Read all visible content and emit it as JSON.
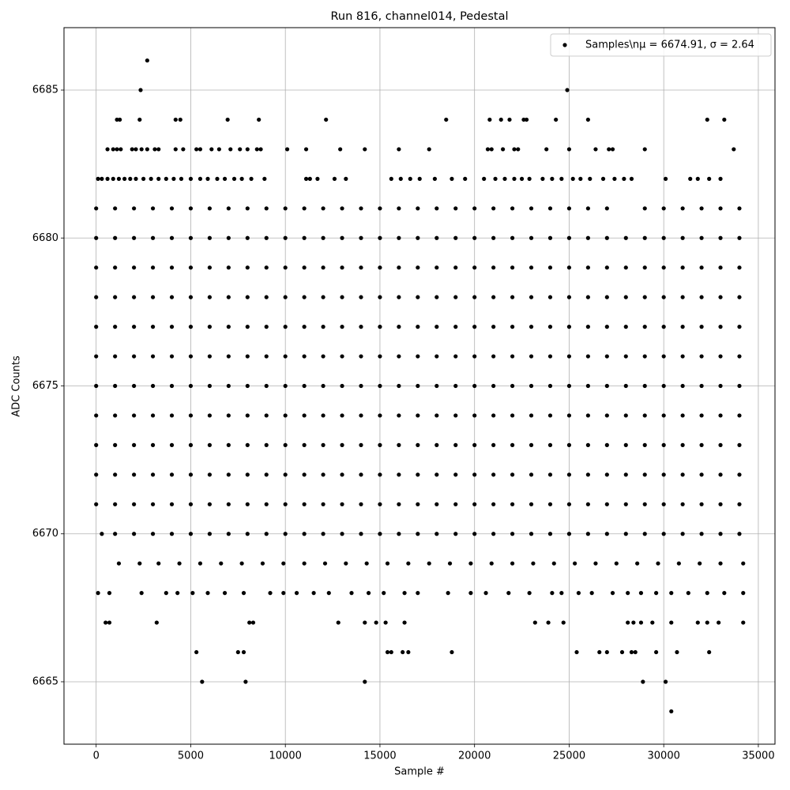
{
  "chart_data": {
    "type": "scatter",
    "title": "Run 816, channel014, Pedestal",
    "x_label": "Sample #",
    "y_label": "ADC Counts",
    "xlim": [
      -1700,
      35880
    ],
    "ylim": [
      6662.89,
      6687.11
    ],
    "xticks": [
      0,
      5000,
      10000,
      15000,
      20000,
      25000,
      30000,
      35000
    ],
    "yticks": [
      6665,
      6670,
      6675,
      6680,
      6685
    ],
    "grid": true,
    "legend_position": "upper-right",
    "series": [
      {
        "name": "Samples\\nμ = 6674.91, σ = 2.64",
        "color": "#000000"
      }
    ],
    "x": [
      2700,
      2350,
      24900,
      1100,
      1250,
      2300,
      4200,
      4450,
      6950,
      8600,
      12150,
      18500,
      20800,
      21400,
      21850,
      22600,
      22750,
      24300,
      26000,
      32300,
      33200,
      600,
      900,
      1100,
      1300,
      1900,
      2100,
      2400,
      2700,
      3100,
      3300,
      4200,
      4600,
      5300,
      5500,
      6100,
      6500,
      7100,
      7600,
      8000,
      8500,
      8700,
      10100,
      11100,
      12900,
      14200,
      16000,
      17600,
      20700,
      20900,
      21500,
      22100,
      22300,
      23800,
      25000,
      26400,
      27100,
      27300,
      29000,
      33700,
      100,
      300,
      600,
      900,
      1200,
      1500,
      1800,
      2100,
      2500,
      2900,
      3300,
      3700,
      4100,
      4500,
      5000,
      5500,
      5900,
      6400,
      6800,
      7300,
      7700,
      8200,
      8900,
      11100,
      11300,
      11700,
      12600,
      13200,
      15600,
      16100,
      16600,
      17100,
      17900,
      18800,
      19500,
      20500,
      21100,
      21600,
      22100,
      22500,
      22900,
      23600,
      24100,
      24600,
      25200,
      25600,
      26100,
      26800,
      27400,
      27900,
      28300,
      30100,
      31400,
      31800,
      32400,
      33000,
      0,
      1000,
      2000,
      3000,
      4000,
      5000,
      6000,
      7000,
      8000,
      9000,
      10000,
      11000,
      12000,
      13000,
      14000,
      15000,
      16000,
      17000,
      18000,
      19000,
      20000,
      21000,
      22000,
      23000,
      24000,
      25000,
      26000,
      27000,
      29000,
      30000,
      31000,
      32000,
      33000,
      34000,
      0,
      1000,
      2000,
      3000,
      4000,
      5000,
      6000,
      7000,
      8000,
      9000,
      10000,
      11000,
      12000,
      13000,
      14000,
      15000,
      16000,
      17000,
      18000,
      19000,
      20000,
      21000,
      22000,
      23000,
      24000,
      25000,
      26000,
      27000,
      28000,
      29000,
      30000,
      31000,
      32000,
      33000,
      34000,
      0,
      1000,
      2000,
      3000,
      4000,
      5000,
      6000,
      7000,
      8000,
      9000,
      10000,
      11000,
      12000,
      13000,
      14000,
      15000,
      16000,
      17000,
      18000,
      19000,
      20000,
      21000,
      22000,
      23000,
      24000,
      25000,
      26000,
      27000,
      28000,
      29000,
      30000,
      31000,
      32000,
      33000,
      34000,
      0,
      1000,
      2000,
      3000,
      4000,
      5000,
      6000,
      7000,
      8000,
      9000,
      10000,
      11000,
      12000,
      13000,
      14000,
      15000,
      16000,
      17000,
      18000,
      19000,
      20000,
      21000,
      22000,
      23000,
      24000,
      25000,
      26000,
      27000,
      28000,
      29000,
      30000,
      31000,
      32000,
      33000,
      34000,
      0,
      1000,
      2000,
      3000,
      4000,
      5000,
      6000,
      7000,
      8000,
      9000,
      10000,
      11000,
      12000,
      13000,
      14000,
      15000,
      16000,
      17000,
      18000,
      19000,
      20000,
      21000,
      22000,
      23000,
      24000,
      25000,
      26000,
      27000,
      28000,
      29000,
      30000,
      31000,
      32000,
      33000,
      34000,
      0,
      1000,
      2000,
      3000,
      4000,
      5000,
      6000,
      7000,
      8000,
      9000,
      10000,
      11000,
      12000,
      13000,
      14000,
      15000,
      16000,
      17000,
      18000,
      19000,
      20000,
      21000,
      22000,
      23000,
      24000,
      25000,
      26000,
      27000,
      28000,
      29000,
      30000,
      31000,
      32000,
      33000,
      34000,
      0,
      1000,
      2000,
      3000,
      4000,
      5000,
      6000,
      7000,
      8000,
      9000,
      10000,
      11000,
      12000,
      13000,
      14000,
      15000,
      16000,
      17000,
      18000,
      19000,
      20000,
      21000,
      22000,
      23000,
      24000,
      25000,
      26000,
      27000,
      28000,
      29000,
      30000,
      31000,
      32000,
      33000,
      34000,
      0,
      1000,
      2000,
      3000,
      4000,
      5000,
      6000,
      7000,
      8000,
      9000,
      10000,
      11000,
      12000,
      13000,
      14000,
      15000,
      16000,
      17000,
      18000,
      19000,
      20000,
      21000,
      22000,
      23000,
      24000,
      25000,
      26000,
      27000,
      28000,
      29000,
      30000,
      31000,
      32000,
      33000,
      34000,
      0,
      1000,
      2000,
      3000,
      4000,
      5000,
      6000,
      7000,
      8000,
      9000,
      10000,
      11000,
      12000,
      13000,
      14000,
      15000,
      16000,
      17000,
      18000,
      19000,
      20000,
      21000,
      22000,
      23000,
      24000,
      25000,
      26000,
      27000,
      28000,
      29000,
      30000,
      31000,
      32000,
      33000,
      34000,
      0,
      1000,
      2000,
      3000,
      4000,
      5000,
      6000,
      7000,
      8000,
      9000,
      10000,
      11000,
      12000,
      13000,
      14000,
      15000,
      16000,
      17000,
      18000,
      19000,
      20000,
      21000,
      22000,
      23000,
      24000,
      25000,
      26000,
      27000,
      28000,
      29000,
      30000,
      31000,
      32000,
      33000,
      34000,
      0,
      1000,
      2000,
      3000,
      4000,
      5000,
      6000,
      7000,
      8000,
      9000,
      10000,
      11000,
      12000,
      13000,
      14000,
      15000,
      16000,
      17000,
      18000,
      19000,
      20000,
      21000,
      22000,
      23000,
      24000,
      25000,
      26000,
      27000,
      28000,
      29000,
      30000,
      31000,
      32000,
      33000,
      34000,
      300,
      1000,
      2000,
      3000,
      4000,
      5000,
      6000,
      7000,
      8000,
      9000,
      10000,
      11000,
      12000,
      13000,
      14000,
      15000,
      16000,
      17000,
      18000,
      19000,
      20000,
      21000,
      22000,
      23000,
      24000,
      25000,
      26000,
      27000,
      28000,
      29000,
      30000,
      31000,
      32000,
      33000,
      34000,
      1200,
      2300,
      3300,
      4400,
      5500,
      6600,
      7700,
      8800,
      9900,
      11000,
      12100,
      13200,
      14300,
      15400,
      16500,
      17600,
      18700,
      19800,
      20900,
      22000,
      23100,
      24200,
      25300,
      26400,
      27500,
      28600,
      29700,
      30800,
      31900,
      33000,
      34200,
      100,
      700,
      2400,
      3700,
      4300,
      5100,
      5900,
      6800,
      7800,
      9200,
      9900,
      10600,
      11500,
      12300,
      13500,
      14400,
      15200,
      16300,
      17000,
      18600,
      19800,
      20600,
      21800,
      22900,
      24100,
      24600,
      25500,
      26200,
      27300,
      28100,
      28800,
      29600,
      30400,
      31300,
      32300,
      33200,
      34200,
      500,
      700,
      3200,
      8100,
      8300,
      12800,
      14200,
      14800,
      15300,
      16300,
      23200,
      23900,
      24700,
      28100,
      28400,
      28800,
      29400,
      30400,
      31800,
      32300,
      32900,
      34200,
      5300,
      7500,
      7800,
      15400,
      15600,
      16200,
      16500,
      18800,
      25400,
      26600,
      27000,
      27800,
      28300,
      28500,
      29600,
      30700,
      32400,
      5600,
      7900,
      14200,
      28900,
      30100,
      30400
    ],
    "values": [
      6686,
      6685,
      6685,
      6684,
      6684,
      6684,
      6684,
      6684,
      6684,
      6684,
      6684,
      6684,
      6684,
      6684,
      6684,
      6684,
      6684,
      6684,
      6684,
      6684,
      6684,
      6683,
      6683,
      6683,
      6683,
      6683,
      6683,
      6683,
      6683,
      6683,
      6683,
      6683,
      6683,
      6683,
      6683,
      6683,
      6683,
      6683,
      6683,
      6683,
      6683,
      6683,
      6683,
      6683,
      6683,
      6683,
      6683,
      6683,
      6683,
      6683,
      6683,
      6683,
      6683,
      6683,
      6683,
      6683,
      6683,
      6683,
      6683,
      6683,
      6682,
      6682,
      6682,
      6682,
      6682,
      6682,
      6682,
      6682,
      6682,
      6682,
      6682,
      6682,
      6682,
      6682,
      6682,
      6682,
      6682,
      6682,
      6682,
      6682,
      6682,
      6682,
      6682,
      6682,
      6682,
      6682,
      6682,
      6682,
      6682,
      6682,
      6682,
      6682,
      6682,
      6682,
      6682,
      6682,
      6682,
      6682,
      6682,
      6682,
      6682,
      6682,
      6682,
      6682,
      6682,
      6682,
      6682,
      6682,
      6682,
      6682,
      6682,
      6682,
      6682,
      6682,
      6682,
      6682,
      6681,
      6681,
      6681,
      6681,
      6681,
      6681,
      6681,
      6681,
      6681,
      6681,
      6681,
      6681,
      6681,
      6681,
      6681,
      6681,
      6681,
      6681,
      6681,
      6681,
      6681,
      6681,
      6681,
      6681,
      6681,
      6681,
      6681,
      6681,
      6681,
      6681,
      6681,
      6681,
      6681,
      6681,
      6680,
      6680,
      6680,
      6680,
      6680,
      6680,
      6680,
      6680,
      6680,
      6680,
      6680,
      6680,
      6680,
      6680,
      6680,
      6680,
      6680,
      6680,
      6680,
      6680,
      6680,
      6680,
      6680,
      6680,
      6680,
      6680,
      6680,
      6680,
      6680,
      6680,
      6680,
      6680,
      6680,
      6680,
      6680,
      6679,
      6679,
      6679,
      6679,
      6679,
      6679,
      6679,
      6679,
      6679,
      6679,
      6679,
      6679,
      6679,
      6679,
      6679,
      6679,
      6679,
      6679,
      6679,
      6679,
      6679,
      6679,
      6679,
      6679,
      6679,
      6679,
      6679,
      6679,
      6679,
      6679,
      6679,
      6679,
      6679,
      6679,
      6679,
      6678,
      6678,
      6678,
      6678,
      6678,
      6678,
      6678,
      6678,
      6678,
      6678,
      6678,
      6678,
      6678,
      6678,
      6678,
      6678,
      6678,
      6678,
      6678,
      6678,
      6678,
      6678,
      6678,
      6678,
      6678,
      6678,
      6678,
      6678,
      6678,
      6678,
      6678,
      6678,
      6678,
      6678,
      6678,
      6677,
      6677,
      6677,
      6677,
      6677,
      6677,
      6677,
      6677,
      6677,
      6677,
      6677,
      6677,
      6677,
      6677,
      6677,
      6677,
      6677,
      6677,
      6677,
      6677,
      6677,
      6677,
      6677,
      6677,
      6677,
      6677,
      6677,
      6677,
      6677,
      6677,
      6677,
      6677,
      6677,
      6677,
      6677,
      6676,
      6676,
      6676,
      6676,
      6676,
      6676,
      6676,
      6676,
      6676,
      6676,
      6676,
      6676,
      6676,
      6676,
      6676,
      6676,
      6676,
      6676,
      6676,
      6676,
      6676,
      6676,
      6676,
      6676,
      6676,
      6676,
      6676,
      6676,
      6676,
      6676,
      6676,
      6676,
      6676,
      6676,
      6676,
      6675,
      6675,
      6675,
      6675,
      6675,
      6675,
      6675,
      6675,
      6675,
      6675,
      6675,
      6675,
      6675,
      6675,
      6675,
      6675,
      6675,
      6675,
      6675,
      6675,
      6675,
      6675,
      6675,
      6675,
      6675,
      6675,
      6675,
      6675,
      6675,
      6675,
      6675,
      6675,
      6675,
      6675,
      6675,
      6674,
      6674,
      6674,
      6674,
      6674,
      6674,
      6674,
      6674,
      6674,
      6674,
      6674,
      6674,
      6674,
      6674,
      6674,
      6674,
      6674,
      6674,
      6674,
      6674,
      6674,
      6674,
      6674,
      6674,
      6674,
      6674,
      6674,
      6674,
      6674,
      6674,
      6674,
      6674,
      6674,
      6674,
      6674,
      6673,
      6673,
      6673,
      6673,
      6673,
      6673,
      6673,
      6673,
      6673,
      6673,
      6673,
      6673,
      6673,
      6673,
      6673,
      6673,
      6673,
      6673,
      6673,
      6673,
      6673,
      6673,
      6673,
      6673,
      6673,
      6673,
      6673,
      6673,
      6673,
      6673,
      6673,
      6673,
      6673,
      6673,
      6673,
      6672,
      6672,
      6672,
      6672,
      6672,
      6672,
      6672,
      6672,
      6672,
      6672,
      6672,
      6672,
      6672,
      6672,
      6672,
      6672,
      6672,
      6672,
      6672,
      6672,
      6672,
      6672,
      6672,
      6672,
      6672,
      6672,
      6672,
      6672,
      6672,
      6672,
      6672,
      6672,
      6672,
      6672,
      6672,
      6671,
      6671,
      6671,
      6671,
      6671,
      6671,
      6671,
      6671,
      6671,
      6671,
      6671,
      6671,
      6671,
      6671,
      6671,
      6671,
      6671,
      6671,
      6671,
      6671,
      6671,
      6671,
      6671,
      6671,
      6671,
      6671,
      6671,
      6671,
      6671,
      6671,
      6671,
      6671,
      6671,
      6671,
      6671,
      6670,
      6670,
      6670,
      6670,
      6670,
      6670,
      6670,
      6670,
      6670,
      6670,
      6670,
      6670,
      6670,
      6670,
      6670,
      6670,
      6670,
      6670,
      6670,
      6670,
      6670,
      6670,
      6670,
      6670,
      6670,
      6670,
      6670,
      6670,
      6670,
      6670,
      6670,
      6670,
      6670,
      6670,
      6670,
      6669,
      6669,
      6669,
      6669,
      6669,
      6669,
      6669,
      6669,
      6669,
      6669,
      6669,
      6669,
      6669,
      6669,
      6669,
      6669,
      6669,
      6669,
      6669,
      6669,
      6669,
      6669,
      6669,
      6669,
      6669,
      6669,
      6669,
      6669,
      6669,
      6669,
      6669,
      6668,
      6668,
      6668,
      6668,
      6668,
      6668,
      6668,
      6668,
      6668,
      6668,
      6668,
      6668,
      6668,
      6668,
      6668,
      6668,
      6668,
      6668,
      6668,
      6668,
      6668,
      6668,
      6668,
      6668,
      6668,
      6668,
      6668,
      6668,
      6668,
      6668,
      6668,
      6668,
      6668,
      6668,
      6668,
      6668,
      6668,
      6667,
      6667,
      6667,
      6667,
      6667,
      6667,
      6667,
      6667,
      6667,
      6667,
      6667,
      6667,
      6667,
      6667,
      6667,
      6667,
      6667,
      6667,
      6667,
      6667,
      6667,
      6667,
      6666,
      6666,
      6666,
      6666,
      6666,
      6666,
      6666,
      6666,
      6666,
      6666,
      6666,
      6666,
      6666,
      6666,
      6666,
      6666,
      6666,
      6665,
      6665,
      6665,
      6665,
      6665,
      6664
    ]
  }
}
